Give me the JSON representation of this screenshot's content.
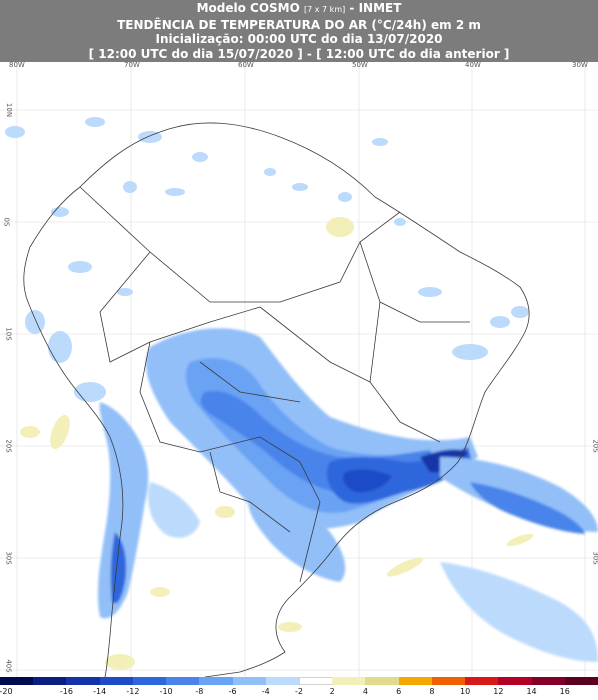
{
  "header": {
    "line1_model": "Modelo COSMO",
    "line1_res": "[7 x 7 km]",
    "line1_org": "- INMET",
    "line2": "TENDÊNCIA DE TEMPERATURA DO AR (°C/24h) em 2 m",
    "line3": "Inicialização: 00:00 UTC do dia 13/07/2020",
    "line4": "[ 12:00 UTC do dia 15/07/2020 ] - [ 12:00 UTC do dia anterior ]"
  },
  "axes": {
    "lon_labels": [
      "80W",
      "70W",
      "60W",
      "50W",
      "40W",
      "30W"
    ],
    "lat_labels": [
      "10N",
      "0S",
      "10S",
      "20S",
      "30S",
      "40S"
    ]
  },
  "colorbar": {
    "labels": [
      "-20",
      "-16",
      "-14",
      "-12",
      "-10",
      "-8",
      "-6",
      "-4",
      "-2",
      "2",
      "4",
      "6",
      "8",
      "10",
      "12",
      "14",
      "16"
    ],
    "colors": [
      "#000a50",
      "#0a1e82",
      "#1234a8",
      "#1e4cc8",
      "#2e66dc",
      "#4a84ea",
      "#6aa2f4",
      "#92bff8",
      "#bcdafc",
      "#ffffff",
      "#f2f0b8",
      "#e0dc8c",
      "#f7a800",
      "#f06000",
      "#d81818",
      "#b40028",
      "#820028",
      "#5a0020"
    ]
  }
}
